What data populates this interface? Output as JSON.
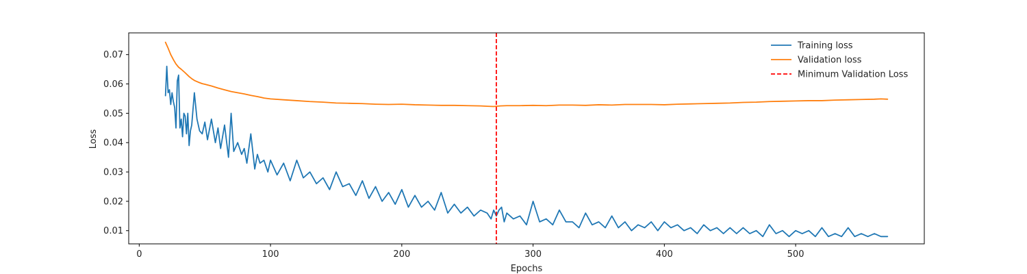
{
  "chart_data": {
    "type": "line",
    "title": "",
    "xlabel": "Epochs",
    "ylabel": "Loss",
    "xlim": [
      -8,
      598
    ],
    "ylim": [
      0.0055,
      0.0774
    ],
    "xticks": [
      0,
      100,
      200,
      300,
      400,
      500
    ],
    "yticks": [
      0.01,
      0.02,
      0.03,
      0.04,
      0.05,
      0.06,
      0.07
    ],
    "grid": false,
    "legend_position": "top-right",
    "series": [
      {
        "name": "Training loss",
        "color": "#1f77b4",
        "x": [
          20,
          21,
          22,
          23,
          24,
          25,
          26,
          27,
          28,
          29,
          30,
          31,
          32,
          33,
          34,
          35,
          36,
          37,
          38,
          39,
          40,
          42,
          44,
          46,
          48,
          50,
          52,
          55,
          58,
          60,
          62,
          65,
          68,
          70,
          72,
          75,
          78,
          80,
          82,
          85,
          88,
          90,
          92,
          95,
          98,
          100,
          105,
          110,
          115,
          120,
          125,
          130,
          135,
          140,
          145,
          150,
          155,
          160,
          165,
          170,
          175,
          180,
          185,
          190,
          195,
          200,
          205,
          210,
          215,
          220,
          225,
          230,
          235,
          240,
          245,
          250,
          255,
          260,
          265,
          268,
          270,
          272,
          274,
          276,
          278,
          280,
          285,
          290,
          295,
          300,
          305,
          310,
          315,
          320,
          325,
          330,
          335,
          340,
          345,
          350,
          355,
          360,
          365,
          370,
          375,
          380,
          385,
          390,
          395,
          400,
          405,
          410,
          415,
          420,
          425,
          430,
          435,
          440,
          445,
          450,
          455,
          460,
          465,
          470,
          475,
          480,
          485,
          490,
          495,
          500,
          505,
          510,
          515,
          520,
          525,
          530,
          535,
          540,
          545,
          550,
          555,
          560,
          565,
          570
        ],
        "values": [
          0.056,
          0.066,
          0.057,
          0.058,
          0.053,
          0.057,
          0.054,
          0.052,
          0.045,
          0.061,
          0.063,
          0.045,
          0.048,
          0.042,
          0.05,
          0.049,
          0.043,
          0.05,
          0.039,
          0.044,
          0.046,
          0.057,
          0.048,
          0.044,
          0.043,
          0.047,
          0.041,
          0.048,
          0.04,
          0.045,
          0.038,
          0.046,
          0.035,
          0.05,
          0.037,
          0.04,
          0.036,
          0.038,
          0.033,
          0.043,
          0.031,
          0.036,
          0.033,
          0.034,
          0.03,
          0.034,
          0.029,
          0.033,
          0.027,
          0.034,
          0.028,
          0.03,
          0.026,
          0.028,
          0.024,
          0.03,
          0.025,
          0.026,
          0.022,
          0.027,
          0.021,
          0.025,
          0.02,
          0.023,
          0.019,
          0.024,
          0.018,
          0.022,
          0.018,
          0.02,
          0.017,
          0.023,
          0.016,
          0.019,
          0.016,
          0.018,
          0.015,
          0.017,
          0.016,
          0.014,
          0.017,
          0.015,
          0.017,
          0.018,
          0.013,
          0.016,
          0.014,
          0.015,
          0.012,
          0.02,
          0.013,
          0.014,
          0.012,
          0.017,
          0.013,
          0.013,
          0.011,
          0.016,
          0.012,
          0.013,
          0.011,
          0.015,
          0.011,
          0.013,
          0.01,
          0.012,
          0.011,
          0.013,
          0.01,
          0.013,
          0.011,
          0.012,
          0.01,
          0.011,
          0.009,
          0.012,
          0.01,
          0.011,
          0.009,
          0.011,
          0.009,
          0.011,
          0.009,
          0.01,
          0.008,
          0.012,
          0.009,
          0.01,
          0.008,
          0.01,
          0.009,
          0.01,
          0.008,
          0.011,
          0.008,
          0.009,
          0.008,
          0.011,
          0.008,
          0.009,
          0.008,
          0.009,
          0.008,
          0.008
        ]
      },
      {
        "name": "Validation loss",
        "color": "#ff7f0e",
        "x": [
          20,
          22,
          24,
          26,
          28,
          30,
          32,
          35,
          38,
          40,
          42,
          45,
          48,
          50,
          55,
          60,
          65,
          70,
          75,
          80,
          85,
          90,
          95,
          100,
          110,
          120,
          130,
          140,
          150,
          160,
          170,
          180,
          190,
          200,
          210,
          220,
          230,
          240,
          250,
          260,
          265,
          270,
          275,
          280,
          290,
          300,
          310,
          320,
          330,
          340,
          350,
          360,
          370,
          380,
          390,
          400,
          410,
          420,
          430,
          440,
          450,
          460,
          470,
          480,
          490,
          500,
          510,
          520,
          530,
          540,
          550,
          560,
          565,
          570
        ],
        "values": [
          0.0742,
          0.0722,
          0.07,
          0.0683,
          0.0668,
          0.0657,
          0.065,
          0.0638,
          0.0625,
          0.0618,
          0.0612,
          0.0606,
          0.0601,
          0.0599,
          0.0593,
          0.0586,
          0.058,
          0.0574,
          0.057,
          0.0566,
          0.0561,
          0.0557,
          0.0552,
          0.0549,
          0.0546,
          0.0543,
          0.054,
          0.0538,
          0.0535,
          0.0534,
          0.0533,
          0.0531,
          0.053,
          0.0531,
          0.0529,
          0.0528,
          0.0527,
          0.0527,
          0.0526,
          0.0525,
          0.0524,
          0.0523,
          0.0525,
          0.0526,
          0.0526,
          0.0527,
          0.0526,
          0.0528,
          0.0528,
          0.0527,
          0.0529,
          0.0528,
          0.053,
          0.053,
          0.053,
          0.0529,
          0.0531,
          0.0532,
          0.0533,
          0.0534,
          0.0535,
          0.0537,
          0.0538,
          0.054,
          0.0541,
          0.0542,
          0.0543,
          0.0543,
          0.0545,
          0.0546,
          0.0547,
          0.0548,
          0.0549,
          0.0548
        ]
      }
    ],
    "vline": {
      "name": "Minimum Validation Loss",
      "x": 272,
      "color": "#ff0000",
      "style": "dashed"
    }
  }
}
